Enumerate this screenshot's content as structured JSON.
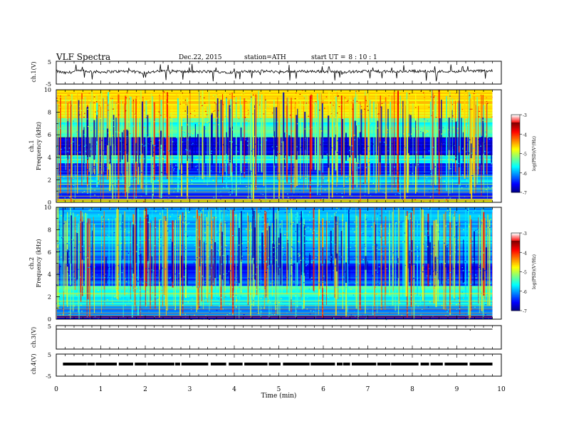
{
  "header": {
    "title": "VLF  Spectra",
    "date": "Dec.22, 2015",
    "station": "station=ATH",
    "start_label": "start  UT  =",
    "start_value": "8 : 10 : 1"
  },
  "colors": {
    "spectrogram_low": "#00006e",
    "spectrogram_mid": "#00e0e0",
    "spectrogram_high": "#ff0000",
    "trace": "#000000"
  },
  "chart_data": [
    {
      "type": "line",
      "panel": "ch1-waveform",
      "ylabel": "ch.1(V)",
      "ylim": [
        -5,
        5
      ],
      "y_ticks": [
        "5",
        "-5"
      ],
      "xlim": [
        0,
        10
      ],
      "series": [
        {
          "x": [
            0,
            0.2,
            0.5,
            1,
            1.5,
            2,
            2.5,
            3,
            3.5,
            4,
            4.5,
            5,
            5.5,
            6,
            6.5,
            7,
            7.5,
            8,
            8.5,
            9,
            9.5,
            9.8
          ],
          "values": [
            0.3,
            -0.5,
            0.4,
            0.0,
            0.3,
            -0.2,
            0.5,
            0.0,
            0.2,
            -0.2,
            0.4,
            0.1,
            0.3,
            0.2,
            0.0,
            0.3,
            0.1,
            0.4,
            0.2,
            0.3,
            0.5,
            0.4
          ]
        }
      ]
    },
    {
      "type": "heatmap",
      "panel": "ch1-spectrogram",
      "ylabel": "ch.1\nFrequency  (kHz)",
      "ylim": [
        0,
        10
      ],
      "y_ticks": [
        "0",
        "2",
        "4",
        "6",
        "8",
        "10"
      ],
      "xlim": [
        0,
        9.8
      ],
      "colorbar_label": "log(PSD)(V²/Hz)",
      "colorbar_range": [
        -7,
        -3
      ],
      "colorbar_ticks": [
        "-3",
        "-4",
        "-5",
        "-6",
        "-7"
      ],
      "freq_bands_kHz": [
        0,
        0.3,
        1.0,
        1.8,
        2.4,
        3.5,
        4.2,
        5.8,
        7.5,
        10
      ],
      "band_logpsd": [
        -4.8,
        -6.3,
        -6.0,
        -5.6,
        -6.4,
        -5.4,
        -6.6,
        -5.3,
        -4.4
      ]
    },
    {
      "type": "heatmap",
      "panel": "ch2-spectrogram",
      "ylabel": "ch.2\nFrequency  (kHz)",
      "ylim": [
        0,
        10
      ],
      "y_ticks": [
        "0",
        "2",
        "4",
        "6",
        "8",
        "10"
      ],
      "xlim": [
        0,
        9.8
      ],
      "colorbar_label": "log(PSD)(V²/Hz)",
      "colorbar_range": [
        -7,
        -3
      ],
      "colorbar_ticks": [
        "-3",
        "-4",
        "-5",
        "-6",
        "-7"
      ],
      "freq_bands_kHz": [
        0,
        0.3,
        1.2,
        2.0,
        3.0,
        4.0,
        5.0,
        6.5,
        10
      ],
      "band_logpsd": [
        -6.8,
        -6.0,
        -5.5,
        -5.3,
        -6.2,
        -6.5,
        -6.0,
        -5.8
      ]
    },
    {
      "type": "line",
      "panel": "ch3-waveform",
      "ylabel": "ch.3(V)",
      "ylim": [
        -5,
        5
      ],
      "y_ticks": [
        "5"
      ],
      "xlim": [
        0,
        10
      ],
      "series": [
        {
          "x": [
            0,
            9.8
          ],
          "values": [
            0,
            0
          ]
        }
      ]
    },
    {
      "type": "line",
      "panel": "ch4-waveform",
      "ylabel": "ch.4(V)",
      "ylim": [
        -5,
        5
      ],
      "y_ticks": [
        "5",
        "-5"
      ],
      "xlim": [
        0,
        10
      ],
      "xlabel": "Time  (min)",
      "x_ticks": [
        "0",
        "1",
        "2",
        "3",
        "4",
        "5",
        "6",
        "7",
        "8",
        "9",
        "10"
      ],
      "series": [
        {
          "x": [
            0,
            9.8
          ],
          "values": [
            0,
            0
          ]
        }
      ]
    }
  ]
}
